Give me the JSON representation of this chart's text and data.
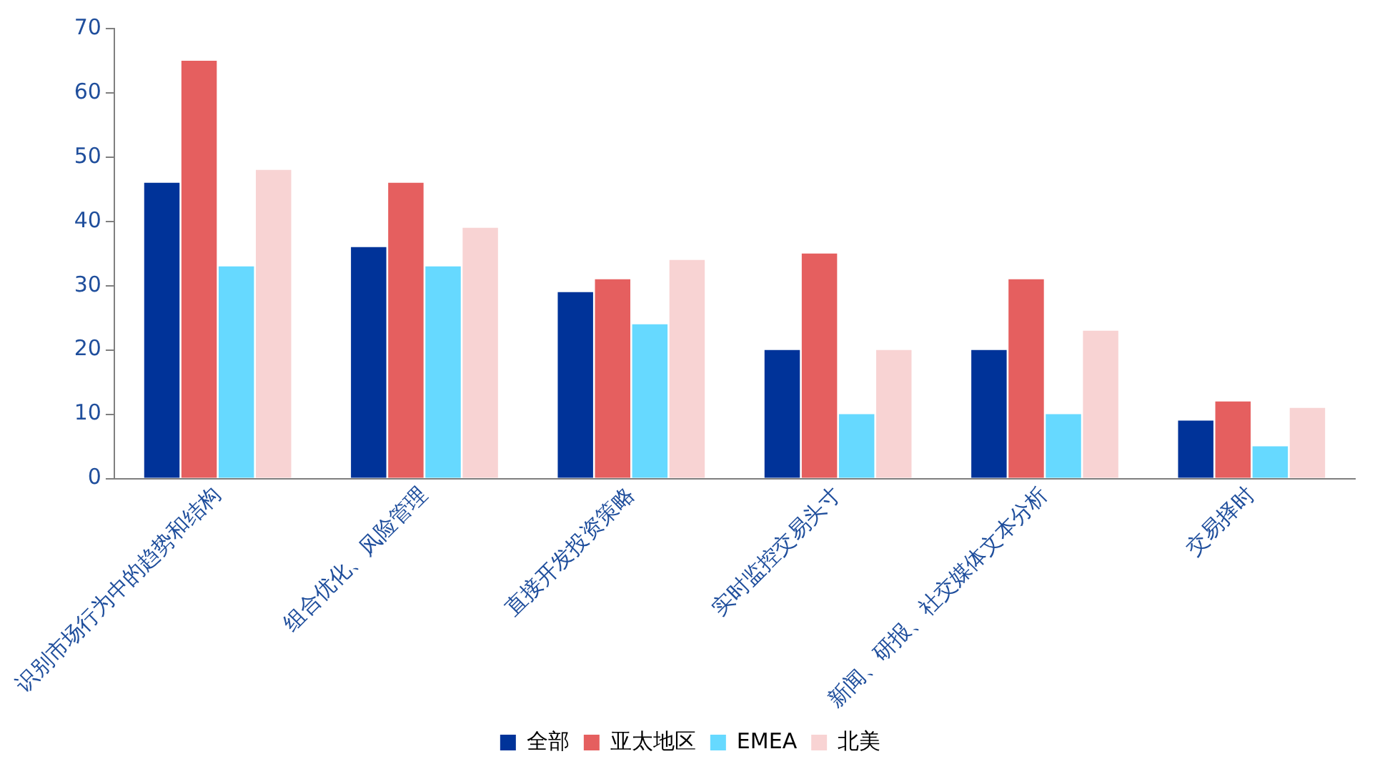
{
  "chart_data": {
    "type": "bar",
    "categories": [
      "识别市场行为中的趋势和结构",
      "组合优化、风险管理",
      "直接开发投资策略",
      "实时监控交易头寸",
      "新闻、研报、社交媒体文本分析",
      "交易择时"
    ],
    "series": [
      {
        "name": "全部",
        "color": "#003399",
        "values": [
          46,
          36,
          29,
          20,
          20,
          9
        ]
      },
      {
        "name": "亚太地区",
        "color": "#e55f5f",
        "values": [
          65,
          46,
          31,
          35,
          31,
          12
        ]
      },
      {
        "name": "EMEA",
        "color": "#66d9ff",
        "values": [
          33,
          33,
          24,
          10,
          10,
          5
        ]
      },
      {
        "name": "北美",
        "color": "#f8d3d3",
        "values": [
          48,
          39,
          34,
          20,
          23,
          11
        ]
      }
    ],
    "ylim": [
      0,
      70
    ],
    "yticks": [
      0,
      10,
      20,
      30,
      40,
      50,
      60,
      70
    ],
    "grid": false,
    "legend": "bottom"
  }
}
